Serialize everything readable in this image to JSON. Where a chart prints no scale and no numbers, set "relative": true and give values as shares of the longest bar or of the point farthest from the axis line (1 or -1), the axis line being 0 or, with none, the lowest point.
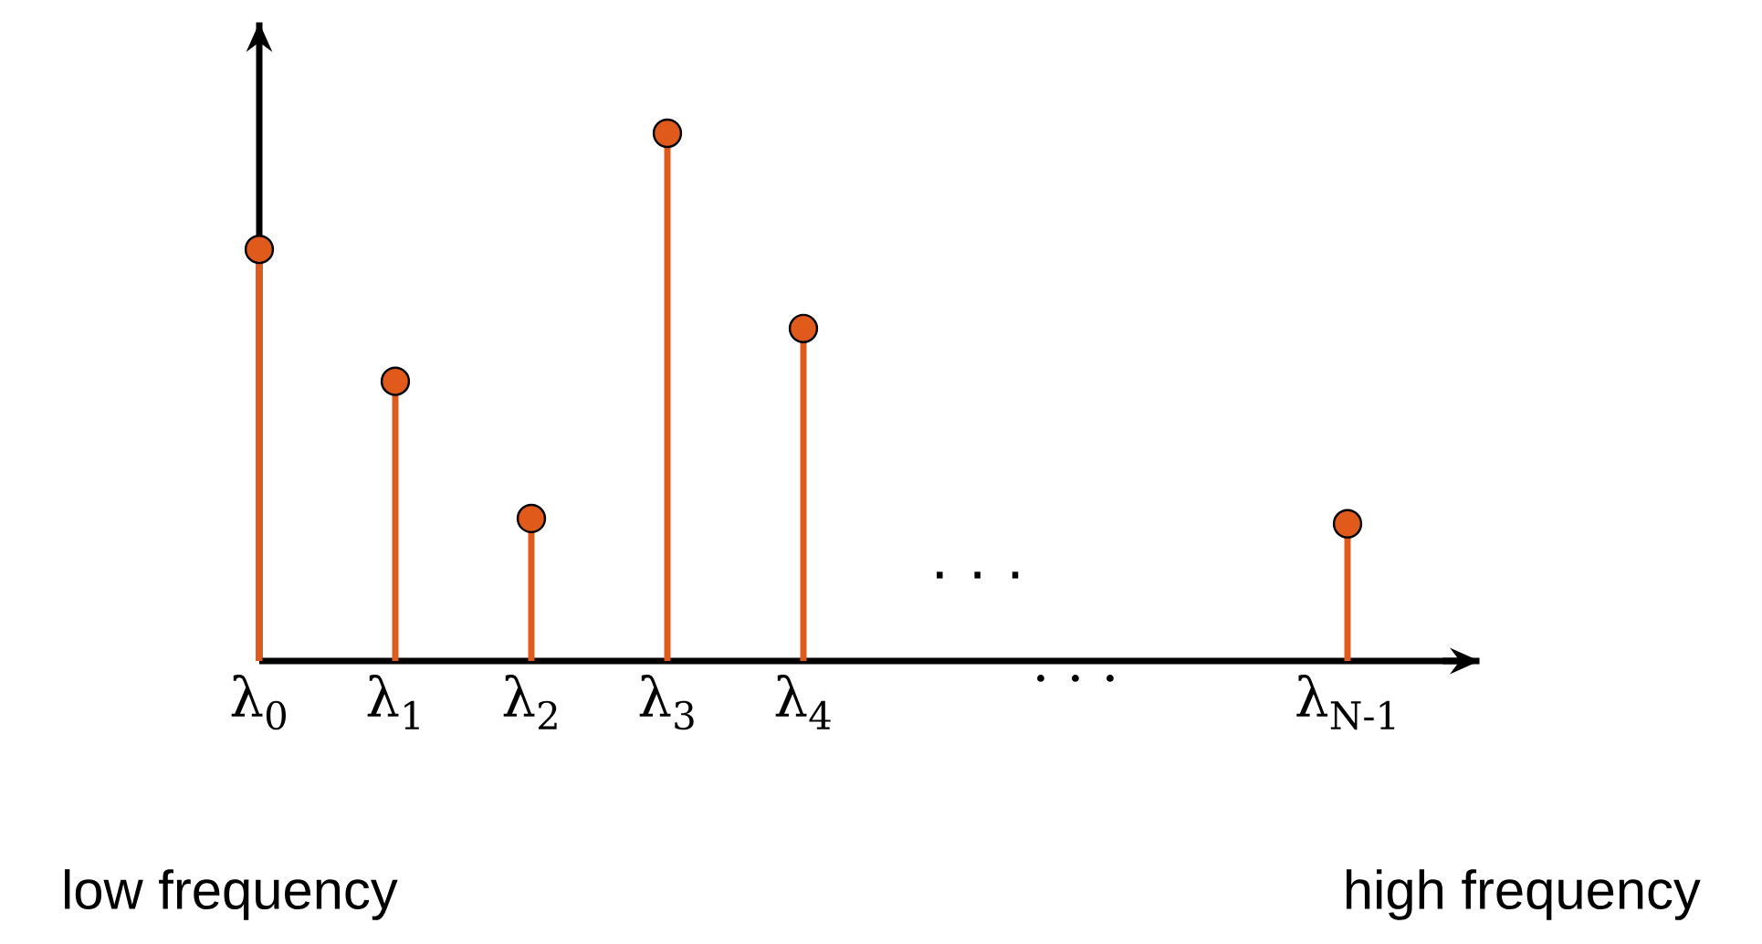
{
  "chart_data": {
    "type": "lollipop",
    "relative": true,
    "categories": [
      "λ$_{0}$",
      "λ$_{1}$",
      "λ$_{2}$",
      "λ$_{3}$",
      "λ$_{4}$",
      null,
      "· · ·",
      null,
      "λ$_{N-1}$"
    ],
    "values": [
      0.78,
      0.53,
      0.27,
      1,
      0.63,
      null,
      null,
      null,
      0.26
    ],
    "color": "#e05a1c",
    "marker": "circle",
    "annotations": [
      "· · ·",
      "low frequency",
      "high frequency"
    ]
  }
}
